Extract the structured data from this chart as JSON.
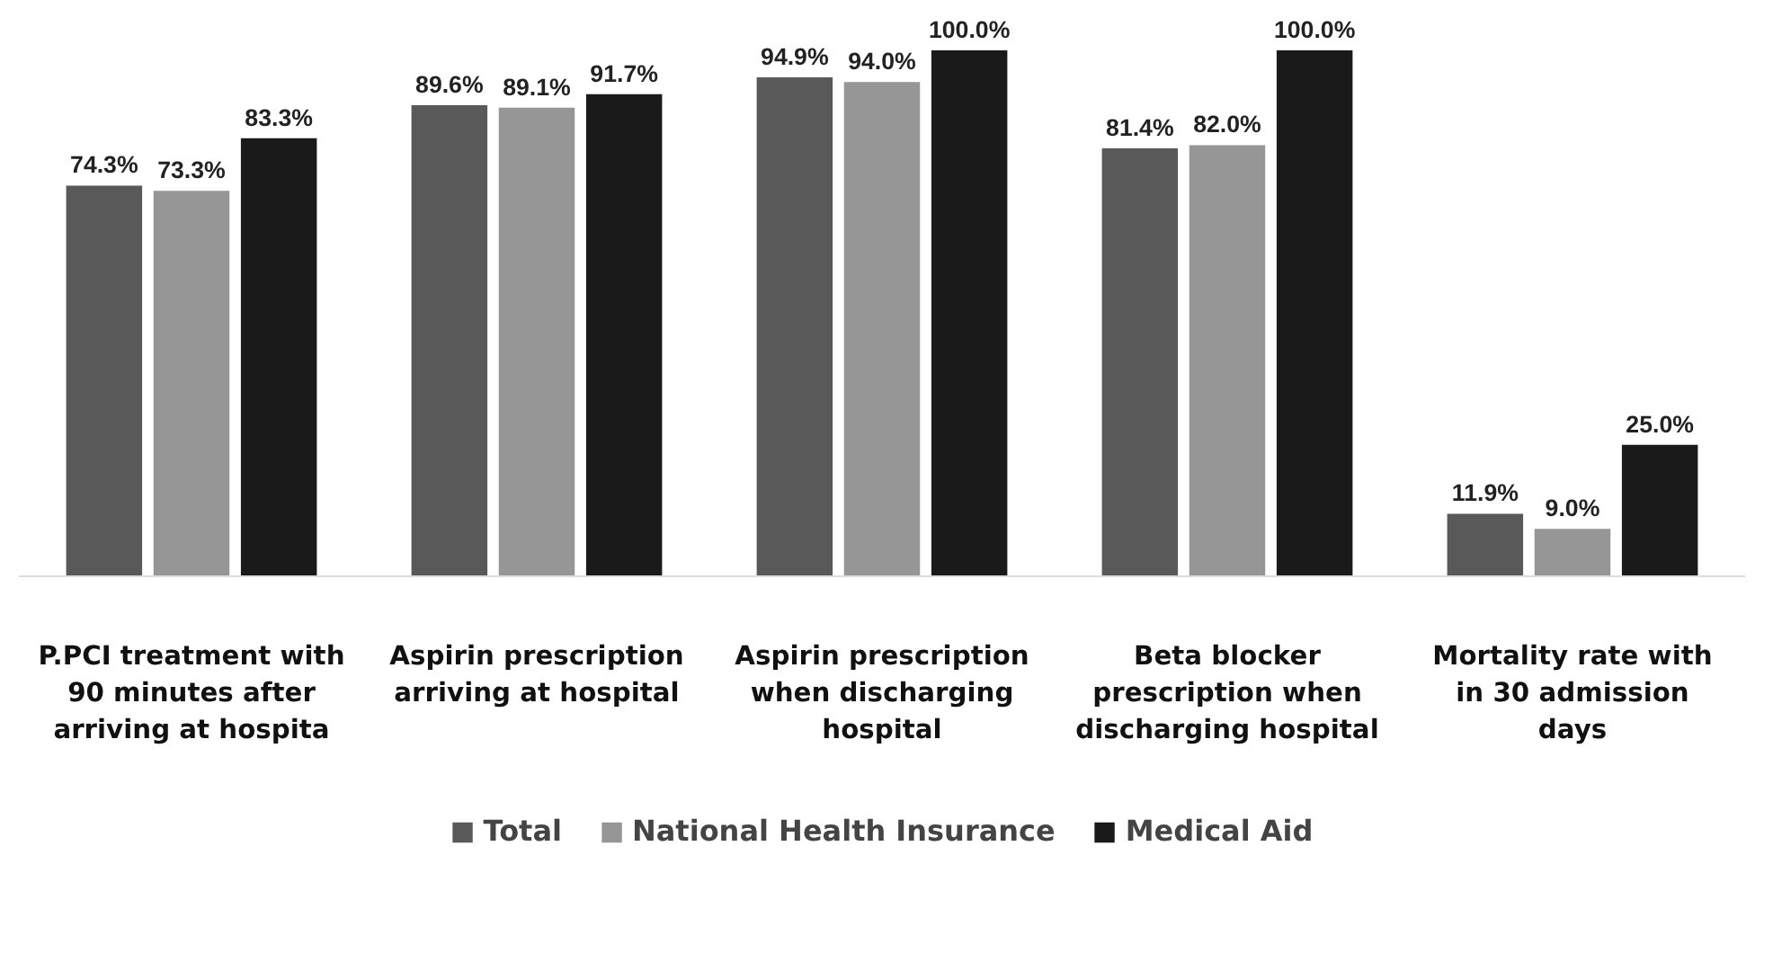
{
  "chart_data": {
    "type": "bar",
    "categories": [
      "P.PCI treatment with\n90 minutes after\narriving at hospita",
      "Aspirin prescription\narriving at hospital",
      "Aspirin prescription\nwhen discharging\nhospital",
      "Beta blocker\nprescription when\ndischarging hospital",
      "Mortality rate with\nin 30 admission\ndays"
    ],
    "series": [
      {
        "name": "Total",
        "color": "#595959",
        "values": [
          74.3,
          89.6,
          94.9,
          81.4,
          11.9
        ],
        "value_labels": [
          "74.3%",
          "89.6%",
          "94.9%",
          "81.4%",
          "11.9%"
        ]
      },
      {
        "name": "National Health Insurance",
        "color": "#969696",
        "values": [
          73.3,
          89.1,
          94.0,
          82.0,
          9.0
        ],
        "value_labels": [
          "73.3%",
          "89.1%",
          "94.0%",
          "82.0%",
          "9.0%"
        ]
      },
      {
        "name": "Medical Aid",
        "color": "#1a1a1a",
        "values": [
          83.3,
          91.7,
          100.0,
          100.0,
          25.0
        ],
        "value_labels": [
          "83.3%",
          "91.7%",
          "100.0%",
          "100.0%",
          "25.0%"
        ]
      }
    ],
    "grid": false,
    "legend": "bottom",
    "tick_labels": "x"
  }
}
